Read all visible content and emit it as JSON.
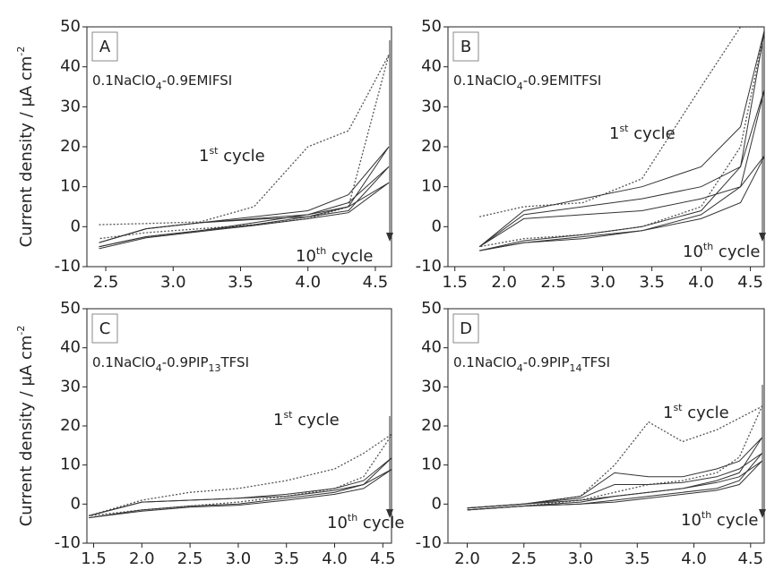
{
  "chart_data": [
    {
      "type": "line",
      "panel": "A",
      "subtitle": [
        "0.1NaClO",
        "4",
        "-0.9EMIFSI"
      ],
      "ylabel": [
        "Current density / μA cm",
        "-2"
      ],
      "annotations": [
        [
          "1",
          "st",
          " cycle"
        ],
        [
          "10",
          "th",
          " cycle"
        ]
      ],
      "x": [
        2.45,
        2.8,
        3.2,
        3.6,
        4.0,
        4.3,
        4.6,
        4.3,
        4.0,
        3.6,
        3.2,
        2.8,
        2.45
      ],
      "series": [
        {
          "color": "#555555",
          "style": "dotted",
          "values": [
            0.5,
            0.8,
            1.2,
            5,
            20,
            24,
            43,
            5,
            2,
            0.5,
            -0.5,
            -1.5,
            -3
          ]
        },
        {
          "color": "#333333",
          "style": "solid",
          "values": [
            -4,
            -0.5,
            1,
            2.5,
            4,
            8,
            20,
            5,
            3,
            1,
            -1,
            -2.5,
            -5
          ]
        },
        {
          "color": "#333333",
          "style": "solid",
          "values": [
            -4,
            -0.5,
            1,
            2,
            3,
            6,
            15,
            4,
            2.5,
            0.5,
            -1,
            -2.5,
            -5
          ]
        },
        {
          "color": "#333333",
          "style": "solid",
          "values": [
            -4,
            -0.5,
            1,
            1.8,
            2.5,
            5,
            11,
            3.5,
            2,
            0.3,
            -1.2,
            -2.8,
            -5.5
          ]
        }
      ],
      "xlim": [
        2.36,
        4.62
      ],
      "ylim": [
        -10,
        50
      ],
      "xticks": [
        2.5,
        {
          "value": 3,
          "label": "3.0"
        },
        3.5,
        {
          "value": 4,
          "label": "4.0"
        },
        4.5
      ],
      "yticks": [
        -10,
        0,
        10,
        20,
        30,
        40,
        50
      ]
    },
    {
      "type": "line",
      "panel": "B",
      "subtitle": [
        "0.1NaClO",
        "4",
        "-0.9EMITFSI"
      ],
      "annotations": [
        [
          "1",
          "st",
          " cycle"
        ],
        [
          "10",
          "th",
          " cycle"
        ]
      ],
      "x": [
        1.75,
        2.2,
        2.8,
        3.4,
        4.0,
        4.4,
        4.65,
        4.4,
        4.0,
        3.4,
        2.8,
        2.2,
        1.75
      ],
      "series": [
        {
          "color": "#555555",
          "style": "dotted",
          "values": [
            2.5,
            5,
            6,
            12,
            35,
            50,
            50,
            20,
            5,
            0,
            -2,
            -3,
            -5
          ]
        },
        {
          "color": "#333333",
          "style": "solid",
          "values": [
            -5,
            4,
            7,
            10,
            15,
            25,
            50,
            15,
            4,
            0,
            -2,
            -3.5,
            -6
          ]
        },
        {
          "color": "#333333",
          "style": "solid",
          "values": [
            -5,
            3,
            5,
            7,
            10,
            15,
            35,
            10,
            3,
            -1,
            -2.5,
            -4,
            -6
          ]
        },
        {
          "color": "#333333",
          "style": "solid",
          "values": [
            -5,
            2,
            3,
            4,
            7,
            10,
            18,
            6,
            2,
            -1,
            -3,
            -4,
            -6
          ]
        }
      ],
      "xlim": [
        1.43,
        4.64
      ],
      "ylim": [
        -10,
        50
      ],
      "xticks": [
        1.5,
        {
          "value": 2,
          "label": "2.0"
        },
        2.5,
        {
          "value": 3,
          "label": "3.0"
        },
        3.5,
        {
          "value": 4,
          "label": "4.0"
        },
        4.5
      ],
      "yticks": [
        -10,
        0,
        10,
        20,
        30,
        40,
        50
      ]
    },
    {
      "type": "line",
      "panel": "C",
      "subtitle": [
        "0.1NaClO",
        "4",
        "-0.9PIP",
        "13",
        "TFSI"
      ],
      "ylabel": [
        "Current density / μA cm",
        "-2"
      ],
      "annotations": [
        [
          "1",
          "st",
          " cycle"
        ],
        [
          "10",
          "th",
          " cycle"
        ]
      ],
      "x": [
        1.45,
        2.0,
        2.5,
        3.0,
        3.5,
        4.0,
        4.3,
        4.6,
        4.3,
        4.0,
        3.5,
        3.0,
        2.5,
        2.0,
        1.45
      ],
      "series": [
        {
          "color": "#555555",
          "style": "dotted",
          "values": [
            -3,
            1,
            3,
            4,
            6,
            9,
            13,
            18,
            7,
            4,
            2,
            0.5,
            -0.5,
            -1.5,
            -3
          ]
        },
        {
          "color": "#333333",
          "style": "solid",
          "values": [
            -3,
            0.5,
            1,
            1.5,
            2.5,
            4,
            6,
            12,
            5,
            3,
            1.5,
            0,
            -0.5,
            -1.5,
            -3.5
          ]
        },
        {
          "color": "#333333",
          "style": "solid",
          "values": [
            -3,
            0.5,
            1,
            1.5,
            2,
            3.5,
            5,
            9,
            4,
            2.5,
            1,
            -0.3,
            -0.8,
            -1.8,
            -3.5
          ]
        }
      ],
      "xlim": [
        1.43,
        4.59
      ],
      "ylim": [
        -10,
        50
      ],
      "xticks": [
        1.5,
        {
          "value": 2,
          "label": "2.0"
        },
        2.5,
        {
          "value": 3,
          "label": "3.0"
        },
        3.5,
        {
          "value": 4,
          "label": "4.0"
        },
        4.5
      ],
      "yticks": [
        -10,
        0,
        10,
        20,
        30,
        40,
        50
      ]
    },
    {
      "type": "line",
      "panel": "D",
      "subtitle": [
        "0.1NaClO",
        "4",
        "-0.9PIP",
        "14",
        "TFSI"
      ],
      "annotations": [
        [
          "1",
          "st",
          " cycle"
        ],
        [
          "10",
          "th",
          " cycle"
        ]
      ],
      "x": [
        2.0,
        2.5,
        3.0,
        3.3,
        3.6,
        3.9,
        4.2,
        4.4,
        4.6,
        4.4,
        4.2,
        3.9,
        3.6,
        3.3,
        3.0,
        2.5,
        2.0
      ],
      "series": [
        {
          "color": "#555555",
          "style": "dotted",
          "values": [
            -1,
            0,
            2,
            10,
            21,
            16,
            19,
            22,
            25,
            12,
            8,
            6,
            5,
            3,
            1,
            -0.5,
            -1.5
          ]
        },
        {
          "color": "#333333",
          "style": "solid",
          "values": [
            -1,
            0,
            2,
            8,
            7,
            7,
            9,
            11,
            17,
            8,
            6,
            4,
            3,
            2,
            0.5,
            -0.5,
            -1.5
          ]
        },
        {
          "color": "#333333",
          "style": "solid",
          "values": [
            -1,
            0,
            1.5,
            5,
            5,
            5.5,
            7,
            9,
            13,
            6,
            4,
            3,
            2,
            1,
            0,
            -0.5,
            -1.5
          ]
        },
        {
          "color": "#333333",
          "style": "solid",
          "values": [
            -1,
            0,
            1,
            2,
            3,
            4,
            5.5,
            7,
            11,
            5,
            3.5,
            2.5,
            1.5,
            0.5,
            0,
            -0.5,
            -1.5
          ]
        }
      ],
      "xlim": [
        1.83,
        4.62
      ],
      "ylim": [
        -10,
        50
      ],
      "xticks": [
        {
          "value": 2,
          "label": "2.0"
        },
        2.5,
        {
          "value": 3,
          "label": "3.0"
        },
        3.5,
        {
          "value": 4,
          "label": "4.0"
        },
        4.5
      ],
      "yticks": [
        -10,
        0,
        10,
        20,
        30,
        40,
        50
      ]
    }
  ]
}
